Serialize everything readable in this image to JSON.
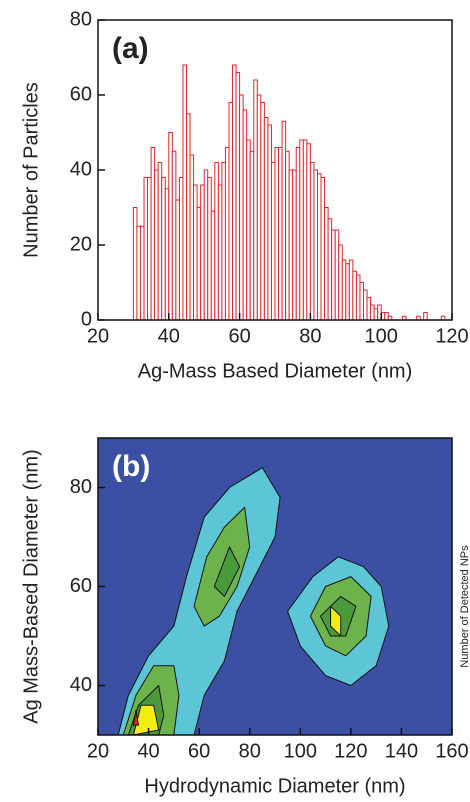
{
  "chart_data": [
    {
      "type": "histogram",
      "annotation": "(a)",
      "xlabel": "Ag-Mass Based Diameter (nm)",
      "ylabel": "Number of Particles",
      "bins": [
        30,
        31,
        32,
        33,
        34,
        35,
        36,
        37,
        38,
        39,
        40,
        41,
        42,
        43,
        44,
        45,
        46,
        47,
        48,
        49,
        50,
        51,
        52,
        53,
        54,
        55,
        56,
        57,
        58,
        59,
        60,
        61,
        62,
        63,
        64,
        65,
        66,
        67,
        68,
        69,
        70,
        71,
        72,
        73,
        74,
        75,
        76,
        77,
        78,
        79,
        80,
        81,
        82,
        83,
        84,
        85,
        86,
        87,
        88,
        89,
        90,
        91,
        92,
        93,
        94,
        95,
        96,
        97,
        98,
        99,
        100,
        101,
        102,
        103,
        104,
        105,
        106,
        107,
        108,
        109,
        110,
        111,
        112,
        113,
        114,
        115,
        116,
        117,
        118,
        119
      ],
      "values": [
        30,
        25,
        25,
        38,
        38,
        46,
        40,
        42,
        38,
        35,
        50,
        45,
        32,
        38,
        68,
        55,
        44,
        36,
        30,
        36,
        40,
        38,
        29,
        42,
        36,
        42,
        46,
        58,
        68,
        66,
        60,
        56,
        48,
        45,
        64,
        60,
        58,
        54,
        52,
        42,
        46,
        46,
        53,
        45,
        40,
        40,
        46,
        48,
        48,
        47,
        42,
        40,
        39,
        38,
        30,
        27,
        24,
        24,
        20,
        16,
        15,
        16,
        13,
        12,
        10,
        8,
        6,
        4,
        3,
        4,
        2,
        2,
        1,
        0,
        0,
        0,
        1,
        0,
        0,
        0,
        1,
        0,
        2,
        0,
        0,
        0,
        0,
        1,
        0
      ],
      "color": "#e0262b",
      "xlim": [
        20,
        120
      ],
      "xticks": [
        20,
        40,
        60,
        80,
        100,
        120
      ],
      "ylim": [
        0,
        80
      ],
      "yticks": [
        0,
        20,
        40,
        60,
        80
      ]
    },
    {
      "type": "contour",
      "annotation": "(b)",
      "xlabel": "Hydrodynamic Diameter (nm)",
      "ylabel": "Ag Mass-Based Diameter (nm)",
      "colorbar_label": "Number of Detected NPs",
      "background": "#3b4fa3",
      "levels": [
        {
          "color": "#5cc6d6",
          "regions": [
            [
              [
                28,
                30
              ],
              [
                32,
                38
              ],
              [
                40,
                46
              ],
              [
                50,
                52
              ],
              [
                55,
                62
              ],
              [
                62,
                74
              ],
              [
                72,
                80
              ],
              [
                85,
                84
              ],
              [
                92,
                78
              ],
              [
                90,
                70
              ],
              [
                80,
                60
              ],
              [
                75,
                55
              ],
              [
                70,
                45
              ],
              [
                62,
                38
              ],
              [
                58,
                30
              ]
            ],
            [
              [
                95,
                55
              ],
              [
                105,
                62
              ],
              [
                115,
                66
              ],
              [
                125,
                64
              ],
              [
                132,
                60
              ],
              [
                135,
                52
              ],
              [
                130,
                44
              ],
              [
                120,
                40
              ],
              [
                110,
                42
              ],
              [
                100,
                48
              ]
            ]
          ]
        },
        {
          "color": "#6db34c",
          "regions": [
            [
              [
                30,
                30
              ],
              [
                35,
                38
              ],
              [
                42,
                44
              ],
              [
                50,
                44
              ],
              [
                52,
                38
              ],
              [
                50,
                30
              ]
            ],
            [
              [
                58,
                56
              ],
              [
                63,
                66
              ],
              [
                70,
                72
              ],
              [
                78,
                76
              ],
              [
                80,
                68
              ],
              [
                75,
                60
              ],
              [
                68,
                54
              ],
              [
                62,
                52
              ]
            ],
            [
              [
                104,
                54
              ],
              [
                110,
                60
              ],
              [
                120,
                62
              ],
              [
                128,
                58
              ],
              [
                126,
                50
              ],
              [
                118,
                46
              ],
              [
                110,
                48
              ]
            ]
          ]
        },
        {
          "color": "#4a9a3c",
          "regions": [
            [
              [
                32,
                30
              ],
              [
                36,
                36
              ],
              [
                44,
                40
              ],
              [
                46,
                34
              ],
              [
                44,
                30
              ]
            ],
            [
              [
                66,
                60
              ],
              [
                72,
                68
              ],
              [
                76,
                64
              ],
              [
                70,
                58
              ]
            ],
            [
              [
                108,
                54
              ],
              [
                116,
                58
              ],
              [
                122,
                56
              ],
              [
                118,
                50
              ],
              [
                112,
                50
              ]
            ]
          ]
        },
        {
          "color": "#f4ee10",
          "regions": [
            [
              [
                34,
                30
              ],
              [
                37,
                36
              ],
              [
                42,
                36
              ],
              [
                44,
                31
              ]
            ],
            [
              [
                112,
                56
              ],
              [
                116,
                54
              ],
              [
                116,
                50
              ],
              [
                112,
                52
              ]
            ]
          ]
        },
        {
          "color": "#e0262b",
          "regions": [
            [
              [
                34,
                32
              ],
              [
                35,
                35
              ],
              [
                36,
                32
              ]
            ]
          ]
        }
      ],
      "xlim": [
        20,
        160
      ],
      "xticks": [
        20,
        40,
        60,
        80,
        100,
        120,
        140,
        160
      ],
      "ylim": [
        30,
        90
      ],
      "yticks": [
        40,
        60,
        80
      ]
    }
  ]
}
